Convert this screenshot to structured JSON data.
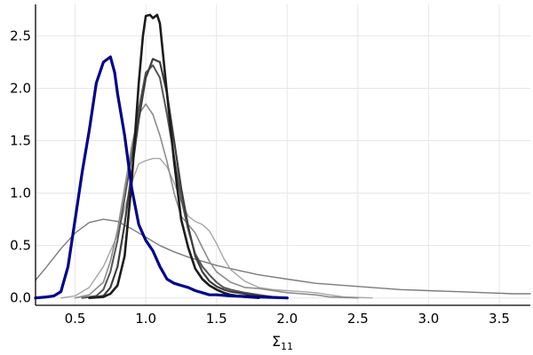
{
  "chart_data": {
    "type": "line",
    "title": "",
    "xlabel": "Σ",
    "xlabel_sub": "11",
    "ylabel": "",
    "xlim": [
      0.22,
      3.72
    ],
    "ylim": [
      -0.07,
      2.8
    ],
    "x_ticks": [
      0.5,
      1.0,
      1.5,
      2.0,
      2.5,
      3.0,
      3.5
    ],
    "y_ticks": [
      0.0,
      0.5,
      1.0,
      1.5,
      2.0,
      2.5
    ],
    "x_tick_labels": [
      "0.5",
      "1.0",
      "1.5",
      "2.0",
      "2.5",
      "3.0",
      "3.5"
    ],
    "y_tick_labels": [
      "0.0",
      "0.5",
      "1.0",
      "1.5",
      "2.0",
      "2.5"
    ],
    "grid": true,
    "legend": "none",
    "series": [
      {
        "color": "#7b7b7b",
        "width": 1.4,
        "points": [
          [
            0.22,
            0.17
          ],
          [
            0.3,
            0.3
          ],
          [
            0.4,
            0.47
          ],
          [
            0.5,
            0.62
          ],
          [
            0.6,
            0.72
          ],
          [
            0.7,
            0.75
          ],
          [
            0.8,
            0.73
          ],
          [
            0.9,
            0.66
          ],
          [
            1.0,
            0.58
          ],
          [
            1.1,
            0.5
          ],
          [
            1.2,
            0.44
          ],
          [
            1.3,
            0.39
          ],
          [
            1.4,
            0.35
          ],
          [
            1.5,
            0.31
          ],
          [
            1.6,
            0.28
          ],
          [
            1.7,
            0.25
          ],
          [
            1.8,
            0.22
          ],
          [
            1.9,
            0.2
          ],
          [
            2.0,
            0.18
          ],
          [
            2.2,
            0.14
          ],
          [
            2.4,
            0.12
          ],
          [
            2.6,
            0.1
          ],
          [
            2.8,
            0.08
          ],
          [
            3.0,
            0.07
          ],
          [
            3.2,
            0.06
          ],
          [
            3.4,
            0.05
          ],
          [
            3.6,
            0.04
          ],
          [
            3.72,
            0.04
          ]
        ]
      },
      {
        "color": "#a6a6a6",
        "width": 1.4,
        "points": [
          [
            0.4,
            0.0
          ],
          [
            0.5,
            0.02
          ],
          [
            0.6,
            0.1
          ],
          [
            0.7,
            0.3
          ],
          [
            0.8,
            0.6
          ],
          [
            0.85,
            0.85
          ],
          [
            0.9,
            1.1
          ],
          [
            0.95,
            1.28
          ],
          [
            1.0,
            1.31
          ],
          [
            1.05,
            1.33
          ],
          [
            1.1,
            1.33
          ],
          [
            1.15,
            1.25
          ],
          [
            1.2,
            1.1
          ],
          [
            1.25,
            0.92
          ],
          [
            1.3,
            0.78
          ],
          [
            1.35,
            0.73
          ],
          [
            1.4,
            0.7
          ],
          [
            1.45,
            0.64
          ],
          [
            1.5,
            0.52
          ],
          [
            1.55,
            0.38
          ],
          [
            1.6,
            0.27
          ],
          [
            1.7,
            0.16
          ],
          [
            1.8,
            0.1
          ],
          [
            1.9,
            0.08
          ],
          [
            2.0,
            0.07
          ],
          [
            2.1,
            0.06
          ],
          [
            2.2,
            0.05
          ],
          [
            2.3,
            0.03
          ],
          [
            2.4,
            0.01
          ],
          [
            2.6,
            0.0
          ]
        ]
      },
      {
        "color": "#8c8c8c",
        "width": 1.6,
        "points": [
          [
            0.5,
            0.0
          ],
          [
            0.6,
            0.03
          ],
          [
            0.7,
            0.15
          ],
          [
            0.75,
            0.35
          ],
          [
            0.8,
            0.65
          ],
          [
            0.85,
            1.05
          ],
          [
            0.9,
            1.45
          ],
          [
            0.95,
            1.75
          ],
          [
            1.0,
            1.85
          ],
          [
            1.05,
            1.75
          ],
          [
            1.1,
            1.55
          ],
          [
            1.15,
            1.3
          ],
          [
            1.2,
            1.0
          ],
          [
            1.25,
            0.78
          ],
          [
            1.3,
            0.7
          ],
          [
            1.35,
            0.62
          ],
          [
            1.4,
            0.48
          ],
          [
            1.45,
            0.35
          ],
          [
            1.5,
            0.25
          ],
          [
            1.6,
            0.15
          ],
          [
            1.7,
            0.1
          ],
          [
            1.8,
            0.09
          ],
          [
            1.9,
            0.07
          ],
          [
            2.0,
            0.05
          ],
          [
            2.1,
            0.04
          ],
          [
            2.2,
            0.03
          ],
          [
            2.3,
            0.01
          ],
          [
            2.5,
            0.0
          ]
        ]
      },
      {
        "color": "#555555",
        "width": 2.0,
        "points": [
          [
            0.55,
            0.0
          ],
          [
            0.65,
            0.02
          ],
          [
            0.7,
            0.08
          ],
          [
            0.75,
            0.25
          ],
          [
            0.8,
            0.55
          ],
          [
            0.85,
            0.95
          ],
          [
            0.9,
            1.35
          ],
          [
            0.95,
            1.8
          ],
          [
            1.0,
            2.15
          ],
          [
            1.05,
            2.22
          ],
          [
            1.1,
            2.1
          ],
          [
            1.15,
            1.75
          ],
          [
            1.2,
            1.35
          ],
          [
            1.25,
            0.95
          ],
          [
            1.3,
            0.65
          ],
          [
            1.35,
            0.42
          ],
          [
            1.4,
            0.3
          ],
          [
            1.45,
            0.22
          ],
          [
            1.5,
            0.15
          ],
          [
            1.55,
            0.1
          ],
          [
            1.6,
            0.08
          ],
          [
            1.7,
            0.05
          ],
          [
            1.8,
            0.03
          ],
          [
            1.9,
            0.01
          ],
          [
            2.0,
            0.0
          ]
        ]
      },
      {
        "color": "#3d3d3d",
        "width": 2.2,
        "points": [
          [
            0.6,
            0.0
          ],
          [
            0.7,
            0.02
          ],
          [
            0.75,
            0.1
          ],
          [
            0.8,
            0.3
          ],
          [
            0.85,
            0.7
          ],
          [
            0.9,
            1.2
          ],
          [
            0.95,
            1.7
          ],
          [
            1.0,
            2.1
          ],
          [
            1.05,
            2.28
          ],
          [
            1.1,
            2.25
          ],
          [
            1.15,
            1.95
          ],
          [
            1.2,
            1.5
          ],
          [
            1.25,
            1.05
          ],
          [
            1.3,
            0.68
          ],
          [
            1.35,
            0.4
          ],
          [
            1.4,
            0.25
          ],
          [
            1.45,
            0.16
          ],
          [
            1.5,
            0.11
          ],
          [
            1.55,
            0.08
          ],
          [
            1.6,
            0.06
          ],
          [
            1.7,
            0.04
          ],
          [
            1.8,
            0.02
          ],
          [
            1.9,
            0.01
          ],
          [
            2.0,
            0.0
          ]
        ]
      },
      {
        "color": "#1c1c1c",
        "width": 2.6,
        "points": [
          [
            0.6,
            0.0
          ],
          [
            0.7,
            0.01
          ],
          [
            0.75,
            0.04
          ],
          [
            0.8,
            0.12
          ],
          [
            0.85,
            0.4
          ],
          [
            0.9,
            1.1
          ],
          [
            0.95,
            2.05
          ],
          [
            0.98,
            2.5
          ],
          [
            1.0,
            2.69
          ],
          [
            1.03,
            2.7
          ],
          [
            1.05,
            2.67
          ],
          [
            1.08,
            2.7
          ],
          [
            1.1,
            2.62
          ],
          [
            1.15,
            1.95
          ],
          [
            1.2,
            1.3
          ],
          [
            1.25,
            0.75
          ],
          [
            1.3,
            0.48
          ],
          [
            1.35,
            0.28
          ],
          [
            1.4,
            0.18
          ],
          [
            1.45,
            0.12
          ],
          [
            1.5,
            0.08
          ],
          [
            1.55,
            0.05
          ],
          [
            1.6,
            0.03
          ],
          [
            1.7,
            0.01
          ],
          [
            1.8,
            0.0
          ]
        ]
      },
      {
        "color": "#00008b",
        "width": 3.2,
        "points": [
          [
            0.22,
            0.0
          ],
          [
            0.3,
            0.01
          ],
          [
            0.35,
            0.02
          ],
          [
            0.4,
            0.06
          ],
          [
            0.45,
            0.3
          ],
          [
            0.5,
            0.75
          ],
          [
            0.55,
            1.2
          ],
          [
            0.6,
            1.6
          ],
          [
            0.65,
            2.05
          ],
          [
            0.7,
            2.25
          ],
          [
            0.75,
            2.3
          ],
          [
            0.78,
            2.15
          ],
          [
            0.8,
            1.95
          ],
          [
            0.85,
            1.55
          ],
          [
            0.9,
            1.05
          ],
          [
            0.95,
            0.7
          ],
          [
            1.0,
            0.55
          ],
          [
            1.05,
            0.45
          ],
          [
            1.1,
            0.3
          ],
          [
            1.15,
            0.18
          ],
          [
            1.2,
            0.14
          ],
          [
            1.25,
            0.12
          ],
          [
            1.3,
            0.1
          ],
          [
            1.35,
            0.07
          ],
          [
            1.4,
            0.05
          ],
          [
            1.45,
            0.03
          ],
          [
            1.5,
            0.03
          ],
          [
            1.6,
            0.02
          ],
          [
            1.8,
            0.01
          ],
          [
            2.0,
            0.0
          ]
        ]
      }
    ]
  }
}
